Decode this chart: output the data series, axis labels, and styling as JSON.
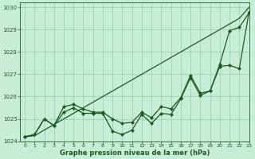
{
  "title": "Graphe pression niveau de la mer (hPa)",
  "background_color": "#c8ecd8",
  "grid_color": "#7acca0",
  "line_color": "#1a5c1a",
  "xlim": [
    -0.5,
    23
  ],
  "ylim": [
    1024,
    1030.2
  ],
  "xticks": [
    0,
    1,
    2,
    3,
    4,
    5,
    6,
    7,
    8,
    9,
    10,
    11,
    12,
    13,
    14,
    15,
    16,
    17,
    18,
    19,
    20,
    21,
    22,
    23
  ],
  "yticks": [
    1024,
    1025,
    1026,
    1027,
    1028,
    1029,
    1030
  ],
  "line_smooth": [
    1024.2,
    1024.25,
    1024.5,
    1024.75,
    1025.0,
    1025.25,
    1025.5,
    1025.75,
    1026.0,
    1026.25,
    1026.5,
    1026.75,
    1027.0,
    1027.25,
    1027.5,
    1027.75,
    1028.0,
    1028.25,
    1028.5,
    1028.75,
    1029.0,
    1029.25,
    1029.5,
    1030.0
  ],
  "line_wavy1": [
    1024.2,
    1024.3,
    1025.0,
    1024.7,
    1025.3,
    1025.5,
    1025.25,
    1025.25,
    1025.25,
    1024.45,
    1024.3,
    1024.5,
    1025.2,
    1024.8,
    1025.25,
    1025.2,
    1025.9,
    1026.85,
    1026.05,
    1026.25,
    1027.45,
    1028.95,
    1029.1,
    1029.75
  ],
  "line_wavy2": [
    1024.2,
    1024.3,
    1025.0,
    1024.7,
    1025.55,
    1025.65,
    1025.45,
    1025.3,
    1025.3,
    1025.0,
    1024.8,
    1024.85,
    1025.3,
    1025.05,
    1025.55,
    1025.45,
    1025.95,
    1026.95,
    1026.15,
    1026.25,
    1027.35,
    1027.4,
    1027.25,
    1029.8
  ],
  "title_fontsize": 6.0,
  "tick_fontsize": 4.5,
  "ylabel_fontsize": 5.0,
  "linewidth": 0.9,
  "markersize": 2.2
}
